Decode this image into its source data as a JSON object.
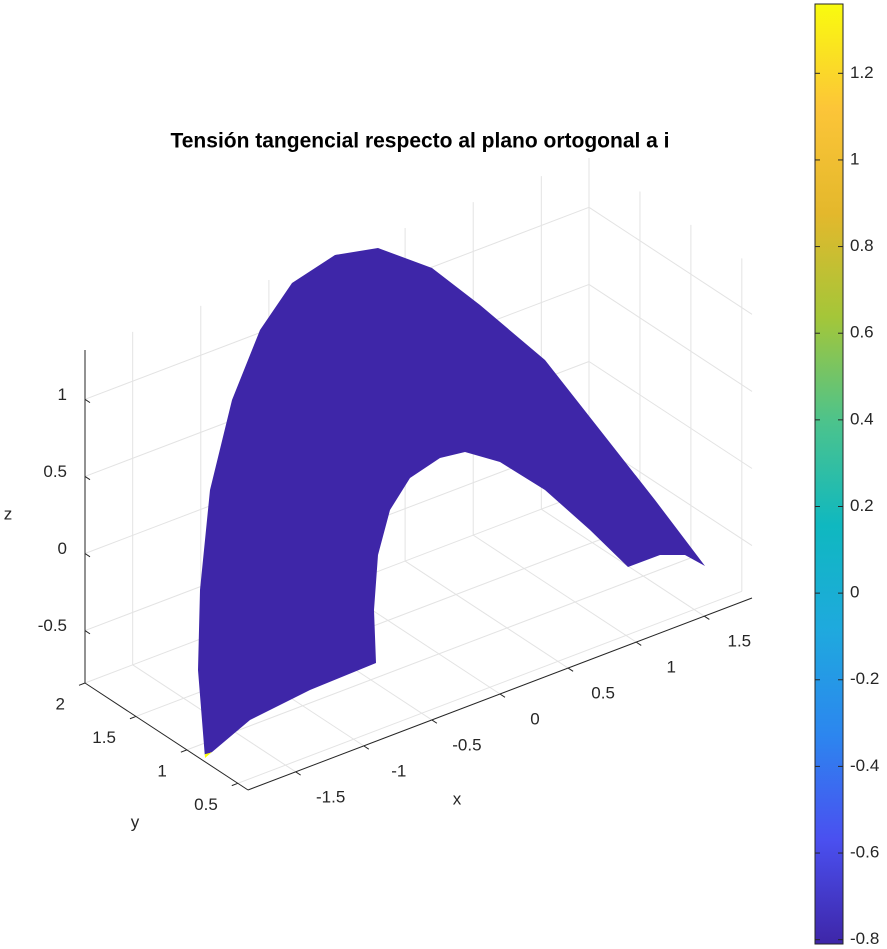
{
  "chart_data": {
    "type": "surface",
    "title": "Tensión tangencial respecto al plano ortogonal a i",
    "xlabel": "x",
    "ylabel": "y",
    "zlabel": "z",
    "xlim": [
      -1.85,
      1.85
    ],
    "xticks": [
      -1.5,
      -1,
      -0.5,
      0,
      0.5,
      1,
      1.5
    ],
    "ylim": [
      0.4,
      2
    ],
    "yticks": [
      0.5,
      1,
      1.5,
      2
    ],
    "zlim": [
      -0.84,
      1.32
    ],
    "zticks": [
      -0.5,
      0,
      0.5,
      1
    ],
    "grid": true,
    "colormap": "parula",
    "colorbar": {
      "clim": [
        -0.81,
        1.36
      ],
      "ticks": [
        -0.8,
        -0.6,
        -0.4,
        -0.2,
        0,
        0.2,
        0.4,
        0.6,
        0.8,
        1,
        1.2
      ]
    }
  }
}
